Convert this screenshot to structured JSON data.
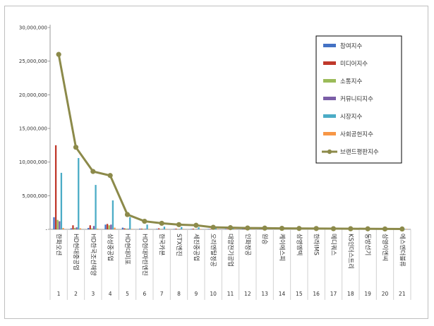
{
  "chart_data": {
    "type": "bar",
    "y_ticks": [
      "30,000,000",
      "25,000,000",
      "20,000,000",
      "15,000,000",
      "10,000,000",
      "5,000,000",
      "-"
    ],
    "ylim": [
      0,
      30000000
    ],
    "legend_position": "top-right",
    "grid": false,
    "categories": [
      "한화오션",
      "HD현대중공업",
      "HD한국조선해양",
      "삼성중공업",
      "HD현대미포",
      "HD현대마린엔진",
      "한국카본",
      "STX엔진",
      "세진중공업",
      "오리엔탈정공",
      "대양전기공업",
      "인화정공",
      "원승",
      "케이에스피",
      "삼영엠텍",
      "한라IMS",
      "메디쿼스",
      "KS인더스트리",
      "동방선기",
      "삼영이엔씨",
      "에스엔더블류"
    ],
    "rank_labels": [
      "1",
      "2",
      "3",
      "4",
      "5",
      "6",
      "7",
      "8",
      "9",
      "10",
      "11",
      "12",
      "13",
      "14",
      "15",
      "16",
      "17",
      "18",
      "19",
      "20",
      "21"
    ],
    "series": [
      {
        "name": "참여지수",
        "kind": "bar",
        "color": "#4472c4",
        "values": [
          1800000,
          150000,
          200000,
          700000,
          250000,
          100000,
          80000,
          60000,
          50000,
          30000,
          20000,
          15000,
          10000,
          8000,
          6000,
          5000,
          4000,
          3000,
          2500,
          2000,
          1500
        ]
      },
      {
        "name": "미디어지수",
        "kind": "bar",
        "color": "#c0392b",
        "values": [
          12500000,
          600000,
          600000,
          800000,
          150000,
          100000,
          150000,
          100000,
          100000,
          50000,
          30000,
          20000,
          15000,
          10000,
          8000,
          6000,
          5000,
          4000,
          3000,
          2500,
          2000
        ]
      },
      {
        "name": "소통지수",
        "kind": "bar",
        "color": "#9bbb59",
        "values": [
          1400000,
          200000,
          150000,
          600000,
          100000,
          80000,
          60000,
          50000,
          40000,
          20000,
          15000,
          10000,
          8000,
          6000,
          5000,
          4000,
          3000,
          2500,
          2000,
          1500,
          1000
        ]
      },
      {
        "name": "커뮤니티지수",
        "kind": "bar",
        "color": "#7b5ea7",
        "values": [
          1200000,
          300000,
          500000,
          700000,
          100000,
          80000,
          60000,
          50000,
          40000,
          20000,
          15000,
          10000,
          8000,
          6000,
          5000,
          4000,
          3000,
          2500,
          2000,
          1500,
          1000
        ]
      },
      {
        "name": "시장지수",
        "kind": "bar",
        "color": "#4bacc6",
        "values": [
          8400000,
          10600000,
          6600000,
          4300000,
          1800000,
          700000,
          400000,
          350000,
          300000,
          150000,
          100000,
          80000,
          60000,
          50000,
          40000,
          30000,
          25000,
          20000,
          15000,
          10000,
          8000
        ]
      },
      {
        "name": "사회공헌지수",
        "kind": "bar",
        "color": "#f79646",
        "values": [
          200000,
          150000,
          100000,
          250000,
          50000,
          30000,
          20000,
          15000,
          10000,
          8000,
          6000,
          5000,
          4000,
          3000,
          2500,
          2000,
          1500,
          1000,
          800,
          600,
          500
        ]
      },
      {
        "name": "브랜드평판지수",
        "kind": "line",
        "color": "#8c8a4a",
        "values": [
          26000000,
          12200000,
          8600000,
          8000000,
          2200000,
          1200000,
          900000,
          700000,
          600000,
          300000,
          250000,
          200000,
          180000,
          150000,
          130000,
          120000,
          100000,
          90000,
          80000,
          60000,
          50000
        ]
      }
    ]
  }
}
